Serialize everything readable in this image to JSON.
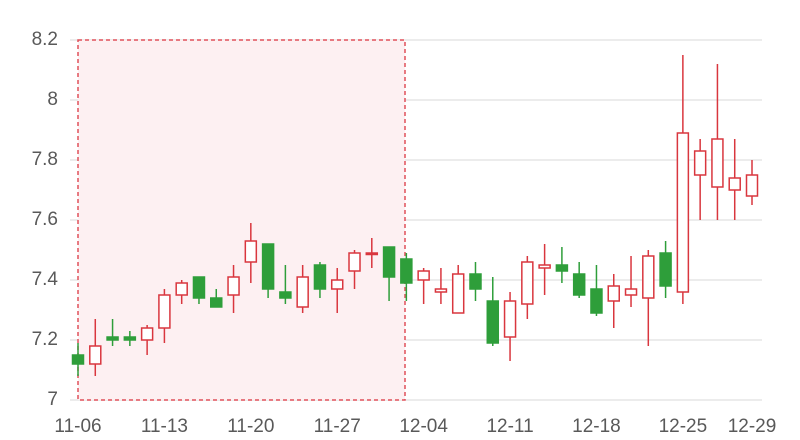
{
  "chart_data": {
    "type": "candlestick",
    "categories": [
      "11-06",
      null,
      null,
      null,
      null,
      "11-13",
      null,
      null,
      null,
      null,
      "11-20",
      null,
      null,
      null,
      null,
      "11-27",
      null,
      null,
      null,
      null,
      "12-04",
      null,
      null,
      null,
      null,
      "12-11",
      null,
      null,
      null,
      null,
      "12-18",
      null,
      null,
      null,
      null,
      "12-25",
      null,
      null,
      null,
      "12-29"
    ],
    "open": [
      7.15,
      7.12,
      7.21,
      7.21,
      7.2,
      7.24,
      7.35,
      7.41,
      7.34,
      7.35,
      7.46,
      7.52,
      7.36,
      7.31,
      7.45,
      7.37,
      7.43,
      7.485,
      7.51,
      7.47,
      7.4,
      7.36,
      7.29,
      7.42,
      7.33,
      7.21,
      7.32,
      7.44,
      7.45,
      7.42,
      7.37,
      7.33,
      7.35,
      7.34,
      7.49,
      7.36,
      7.75,
      7.71,
      7.7,
      7.68
    ],
    "high": [
      7.19,
      7.27,
      7.27,
      7.23,
      7.25,
      7.37,
      7.4,
      7.41,
      7.37,
      7.45,
      7.59,
      7.52,
      7.45,
      7.45,
      7.46,
      7.44,
      7.5,
      7.54,
      7.51,
      7.49,
      7.44,
      7.44,
      7.45,
      7.46,
      7.41,
      7.36,
      7.48,
      7.52,
      7.51,
      7.46,
      7.45,
      7.42,
      7.48,
      7.5,
      7.53,
      8.15,
      7.87,
      8.12,
      7.87,
      7.8
    ],
    "low": [
      7.08,
      7.08,
      7.18,
      7.18,
      7.15,
      7.19,
      7.32,
      7.32,
      7.31,
      7.29,
      7.39,
      7.34,
      7.32,
      7.29,
      7.34,
      7.29,
      7.37,
      7.44,
      7.33,
      7.33,
      7.32,
      7.32,
      7.29,
      7.33,
      7.18,
      7.13,
      7.27,
      7.35,
      7.39,
      7.34,
      7.28,
      7.24,
      7.31,
      7.18,
      7.34,
      7.32,
      7.6,
      7.6,
      7.6,
      7.65
    ],
    "close": [
      7.12,
      7.18,
      7.2,
      7.2,
      7.24,
      7.35,
      7.39,
      7.34,
      7.31,
      7.41,
      7.53,
      7.37,
      7.34,
      7.41,
      7.37,
      7.4,
      7.49,
      7.49,
      7.41,
      7.39,
      7.43,
      7.37,
      7.42,
      7.37,
      7.19,
      7.33,
      7.46,
      7.45,
      7.43,
      7.35,
      7.29,
      7.38,
      7.37,
      7.48,
      7.38,
      7.89,
      7.83,
      7.87,
      7.74,
      7.75
    ],
    "up_color": "#d9363e",
    "down_color": "#2e9e3a",
    "ylim": [
      7,
      8.2
    ],
    "yticks": [
      7,
      7.2,
      7.4,
      7.6,
      7.8,
      8,
      8.2
    ],
    "grid": true
  }
}
